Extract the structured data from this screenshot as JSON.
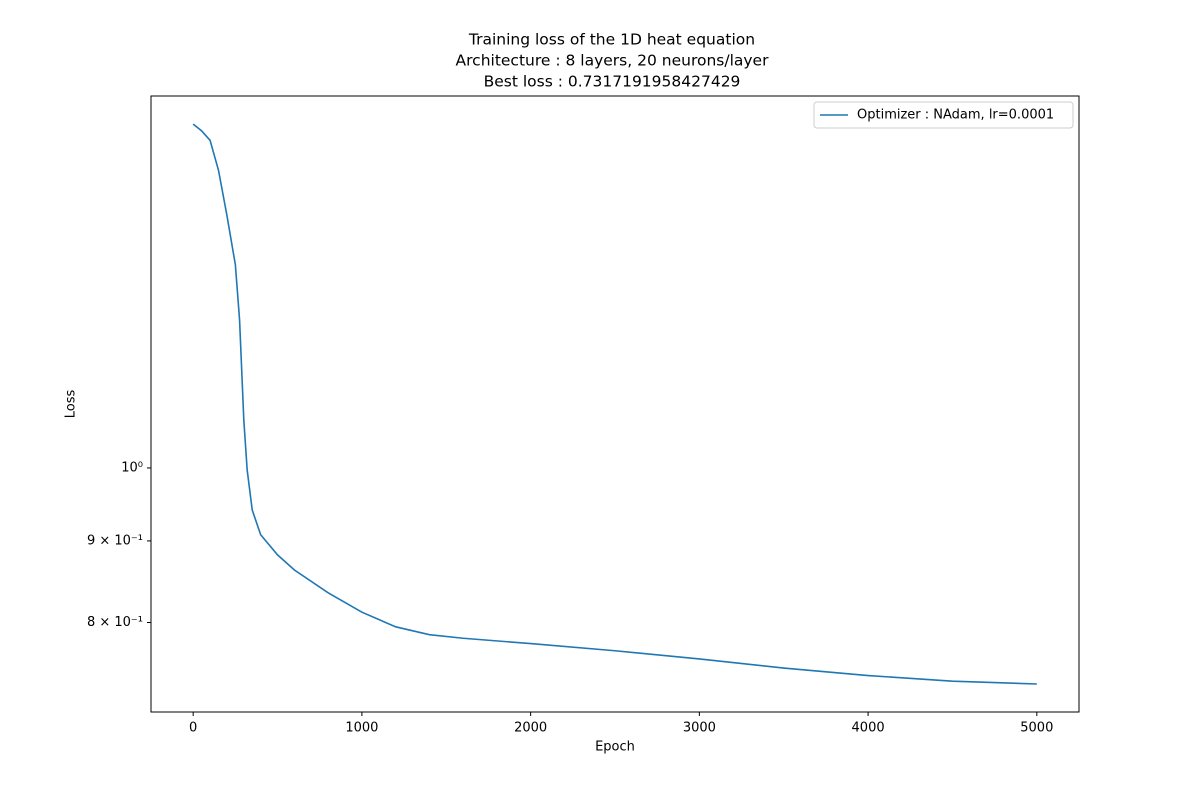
{
  "chart_data": {
    "type": "line",
    "title": [
      "Training loss of the 1D heat equation",
      "Architecture : 8 layers, 20 neurons/layer",
      "Best loss : 0.7317191958427429"
    ],
    "xlabel": "Epoch",
    "ylabel": "Loss",
    "x": [
      0,
      50,
      100,
      150,
      200,
      250,
      275,
      300,
      320,
      350,
      400,
      500,
      600,
      800,
      1000,
      1200,
      1400,
      1600,
      2000,
      2500,
      3000,
      3500,
      4000,
      4500,
      5000
    ],
    "series": [
      {
        "name": "Optimizer : NAdam, lr=0.0001",
        "color": "#1f77b4",
        "values": [
          1.643,
          1.627,
          1.605,
          1.537,
          1.44,
          1.341,
          1.238,
          1.072,
          0.997,
          0.941,
          0.908,
          0.882,
          0.863,
          0.835,
          0.812,
          0.795,
          0.786,
          0.782,
          0.776,
          0.768,
          0.759,
          0.749,
          0.741,
          0.735,
          0.732
        ]
      }
    ],
    "xlim": [
      -250,
      5250
    ],
    "xticks": [
      0,
      1000,
      2000,
      3000,
      4000,
      5000
    ],
    "ylim": [
      0.703,
      1.711
    ],
    "yscale": "log",
    "yticks": [
      {
        "value": 1,
        "label": "10⁰"
      },
      {
        "value": 0.9,
        "label": "9 × 10⁻¹"
      },
      {
        "value": 0.8,
        "label": "8 × 10⁻¹"
      }
    ],
    "grid": false,
    "legend": "upper right"
  }
}
